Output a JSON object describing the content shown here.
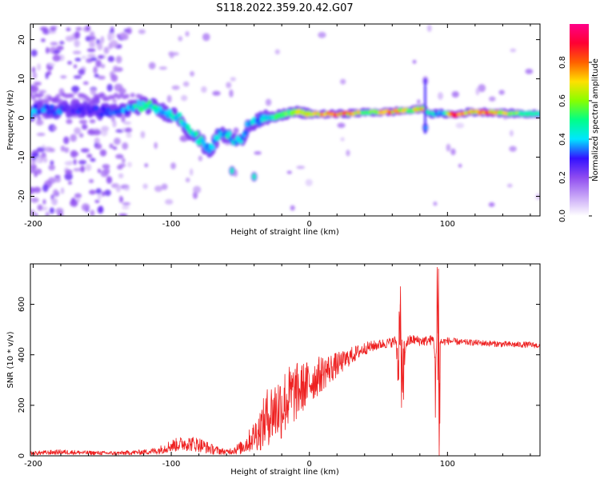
{
  "figure_title": "S118.2022.359.20.42.G07",
  "chart_data": [
    {
      "type": "heatmap",
      "title": "",
      "xlabel": "Height of straight line (km)",
      "ylabel": "Frequency (Hz)",
      "xlim": [
        -202,
        167
      ],
      "ylim": [
        -25,
        24
      ],
      "xticks": [
        -200,
        -100,
        0,
        100
      ],
      "yticks": [
        -20,
        -10,
        0,
        10,
        20
      ],
      "colorbar": {
        "label": "Normalized spectral amplitude",
        "range": [
          0,
          1
        ],
        "ticks": [
          0.0,
          0.2,
          0.4,
          0.6,
          0.8
        ],
        "tick_labels": [
          "0.0",
          "0.2",
          "0.4",
          "0.6",
          "0.8"
        ],
        "colormap": [
          "#ffffff",
          "#c8a6f7",
          "#8f4cf0",
          "#3311ff",
          "#00e6ff",
          "#00ff88",
          "#88ff00",
          "#ffe000",
          "#ff6000",
          "#ff0033",
          "#ff0088"
        ]
      },
      "ridge": [
        {
          "x": -200,
          "y": 2.3,
          "v": 0.4
        },
        {
          "x": -185,
          "y": 1.9,
          "v": 0.35
        },
        {
          "x": -170,
          "y": 2.5,
          "v": 0.3
        },
        {
          "x": -150,
          "y": 1.5,
          "v": 0.3
        },
        {
          "x": -135,
          "y": 1.8,
          "v": 0.35
        },
        {
          "x": -125,
          "y": 3.0,
          "v": 0.5
        },
        {
          "x": -115,
          "y": 3.2,
          "v": 0.5
        },
        {
          "x": -105,
          "y": 1.5,
          "v": 0.45
        },
        {
          "x": -95,
          "y": 0.5,
          "v": 0.45
        },
        {
          "x": -88,
          "y": -3.0,
          "v": 0.45
        },
        {
          "x": -80,
          "y": -5.5,
          "v": 0.45
        },
        {
          "x": -72,
          "y": -8.5,
          "v": 0.4
        },
        {
          "x": -65,
          "y": -4.0,
          "v": 0.4
        },
        {
          "x": -57,
          "y": -5.0,
          "v": 0.45
        },
        {
          "x": -50,
          "y": -6.5,
          "v": 0.4
        },
        {
          "x": -45,
          "y": -2.0,
          "v": 0.4
        },
        {
          "x": -38,
          "y": -0.5,
          "v": 0.4
        },
        {
          "x": -28,
          "y": 0.0,
          "v": 0.45
        },
        {
          "x": -20,
          "y": 0.8,
          "v": 0.55
        },
        {
          "x": -10,
          "y": 1.6,
          "v": 0.6
        },
        {
          "x": 0,
          "y": 1.0,
          "v": 0.7
        },
        {
          "x": 10,
          "y": 1.0,
          "v": 0.8
        },
        {
          "x": 20,
          "y": 1.0,
          "v": 0.85
        },
        {
          "x": 30,
          "y": 1.2,
          "v": 0.75
        },
        {
          "x": 45,
          "y": 1.5,
          "v": 0.6
        },
        {
          "x": 55,
          "y": 1.5,
          "v": 0.8
        },
        {
          "x": 65,
          "y": 1.8,
          "v": 0.75
        },
        {
          "x": 75,
          "y": 2.0,
          "v": 0.65
        },
        {
          "x": 82,
          "y": 2.5,
          "v": 0.8
        },
        {
          "x": 88,
          "y": 1.0,
          "v": 0.45
        },
        {
          "x": 95,
          "y": 1.2,
          "v": 0.4
        },
        {
          "x": 105,
          "y": 0.8,
          "v": 0.85
        },
        {
          "x": 115,
          "y": 1.5,
          "v": 0.75
        },
        {
          "x": 130,
          "y": 1.5,
          "v": 0.85
        },
        {
          "x": 145,
          "y": 1.2,
          "v": 0.65
        },
        {
          "x": 160,
          "y": 1.0,
          "v": 0.55
        },
        {
          "x": 167,
          "y": 1.0,
          "v": 0.5
        }
      ],
      "spots": [
        {
          "x": -56,
          "y": -13.5,
          "v": 0.45
        },
        {
          "x": -40,
          "y": -15.0,
          "v": 0.45
        },
        {
          "x": 84,
          "y": 9.5,
          "v": 0.2
        },
        {
          "x": 84,
          "y": -2.5,
          "v": 0.4
        }
      ]
    },
    {
      "type": "line",
      "title": "",
      "xlabel": "Height of straight line (km)",
      "ylabel": "SNR (10 * v/v)",
      "xlim": [
        -202,
        167
      ],
      "ylim": [
        0,
        760
      ],
      "xticks": [
        -200,
        -100,
        0,
        100
      ],
      "yticks": [
        0,
        200,
        400,
        600
      ],
      "color": "#ee2222",
      "x": [
        -202,
        -180,
        -160,
        -140,
        -120,
        -110,
        -100,
        -90,
        -80,
        -70,
        -60,
        -50,
        -45,
        -40,
        -35,
        -30,
        -25,
        -20,
        -15,
        -10,
        -5,
        0,
        5,
        10,
        15,
        20,
        25,
        30,
        40,
        50,
        60,
        65,
        68,
        70,
        75,
        80,
        85,
        90,
        92,
        93,
        94,
        95,
        96,
        100,
        110,
        120,
        130,
        140,
        150,
        160,
        167
      ],
      "y": [
        10,
        15,
        12,
        10,
        15,
        20,
        40,
        50,
        45,
        25,
        15,
        30,
        50,
        80,
        110,
        160,
        180,
        200,
        230,
        250,
        270,
        290,
        310,
        330,
        345,
        360,
        375,
        395,
        425,
        440,
        450,
        460,
        300,
        450,
        460,
        455,
        455,
        460,
        300,
        740,
        50,
        455,
        450,
        455,
        450,
        448,
        445,
        442,
        440,
        440,
        435
      ],
      "noise": [
        8,
        10,
        8,
        8,
        10,
        15,
        25,
        30,
        30,
        20,
        10,
        25,
        40,
        60,
        90,
        120,
        130,
        140,
        130,
        120,
        100,
        90,
        80,
        70,
        60,
        50,
        40,
        35,
        25,
        20,
        20,
        25,
        10,
        25,
        20,
        20,
        20,
        20,
        10,
        0,
        0,
        15,
        15,
        15,
        12,
        12,
        12,
        12,
        12,
        12,
        10
      ]
    }
  ]
}
